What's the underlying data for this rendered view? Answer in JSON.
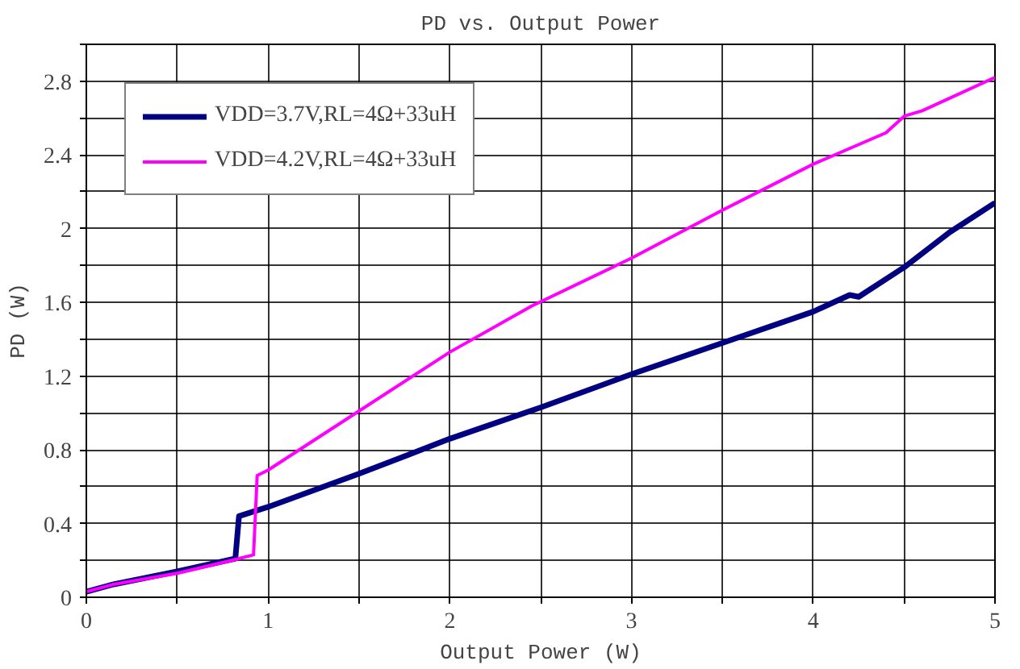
{
  "chart_data": {
    "type": "line",
    "title": "PD vs. Output Power",
    "xlabel": "Output Power (W)",
    "ylabel": "PD (W)",
    "xlim": [
      0,
      5
    ],
    "ylim": [
      0,
      3.0
    ],
    "xticks": [
      0,
      {
        "value": 0.5,
        "label": null
      },
      1,
      {
        "value": 1.5,
        "label": null
      },
      2,
      {
        "value": 2.5,
        "label": null
      },
      3,
      {
        "value": 3.5,
        "label": null
      },
      4,
      {
        "value": 4.5,
        "label": null
      },
      5
    ],
    "yticks": [
      0,
      {
        "value": 0.2,
        "label": null
      },
      0.4,
      {
        "value": 0.6,
        "label": null
      },
      0.8,
      {
        "value": 1.0,
        "label": null
      },
      1.2,
      {
        "value": 1.4,
        "label": null
      },
      1.6,
      {
        "value": 1.8,
        "label": null
      },
      2,
      {
        "value": 2.2,
        "label": null
      },
      2.4,
      {
        "value": 2.6,
        "label": null
      },
      2.8,
      {
        "value": 3.0,
        "label": null
      }
    ],
    "grid": true,
    "legend": "top left",
    "marker": "none",
    "line_style": "solid",
    "series": [
      {
        "name": "VDD=3.7V,RL=4Ω+33uH",
        "color": "#000080",
        "x": [
          0,
          0.15,
          0.5,
          0.82,
          0.84,
          1,
          1.5,
          2,
          2.5,
          3,
          3.5,
          4,
          4.2,
          4.25,
          4.5,
          4.75,
          5
        ],
        "values": [
          0.03,
          0.07,
          0.14,
          0.21,
          0.44,
          0.49,
          0.67,
          0.86,
          1.03,
          1.21,
          1.38,
          1.55,
          1.64,
          1.63,
          1.79,
          1.98,
          2.14
        ]
      },
      {
        "name": "VDD=4.2V,RL=4Ω+33uH",
        "color": "#ff00ff",
        "x": [
          0,
          0.15,
          0.5,
          0.8,
          0.92,
          0.94,
          1,
          1.5,
          2,
          2.45,
          3,
          3.5,
          4,
          4.4,
          4.5,
          4.6,
          5
        ],
        "values": [
          0.03,
          0.07,
          0.13,
          0.2,
          0.23,
          0.66,
          0.69,
          1.01,
          1.33,
          1.58,
          1.84,
          2.1,
          2.35,
          2.52,
          2.61,
          2.64,
          2.82
        ]
      }
    ]
  }
}
